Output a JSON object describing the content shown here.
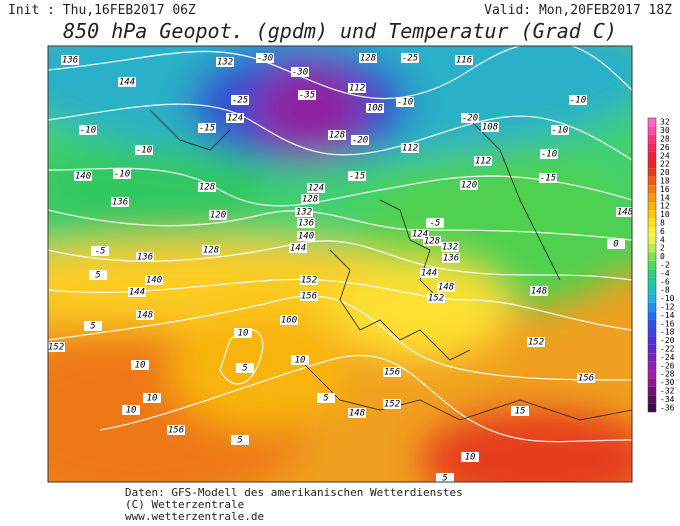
{
  "header": {
    "init": "Init : Thu,16FEB2017 06Z",
    "valid": "Valid: Mon,20FEB2017 18Z",
    "title": "850 hPa Geopot. (gpdm) und Temperatur (Grad C)"
  },
  "legend": {
    "ticks": [
      32,
      30,
      28,
      26,
      24,
      22,
      20,
      18,
      16,
      14,
      12,
      10,
      8,
      6,
      4,
      2,
      0,
      -2,
      -4,
      -6,
      -8,
      -10,
      -12,
      -14,
      -16,
      -18,
      -20,
      -22,
      -24,
      -26,
      -28,
      -30,
      -32,
      -34,
      -36
    ],
    "colors": [
      "#ff66cc",
      "#ff4da6",
      "#ff3380",
      "#f5285a",
      "#eb2040",
      "#e02828",
      "#e63c1e",
      "#ec5a14",
      "#f27a10",
      "#f59a0c",
      "#f8b40a",
      "#fbcc0c",
      "#fde020",
      "#fff040",
      "#e8f550",
      "#b8ee50",
      "#80e050",
      "#50d860",
      "#30d080",
      "#20c8a0",
      "#20c0c0",
      "#20b0e0",
      "#2090f0",
      "#2070f0",
      "#3050e8",
      "#4040e0",
      "#5030d8",
      "#6428c8",
      "#7820c0",
      "#8c20b0",
      "#a020a8",
      "#8c1890",
      "#701078",
      "#580c60",
      "#400848"
    ]
  },
  "map_labels": [
    136,
    144,
    132,
    -30,
    -25,
    -30,
    -35,
    124,
    -15,
    128,
    -20,
    128,
    -25,
    108,
    112,
    -10,
    116,
    112,
    -20,
    108,
    -10,
    -10,
    -10,
    -15,
    112,
    120,
    -10,
    140,
    136,
    -10,
    -10,
    128,
    120,
    124,
    128,
    -15,
    132,
    136,
    140,
    144,
    -5,
    124,
    128,
    132,
    136,
    144,
    148,
    152,
    148,
    0,
    148,
    152,
    156,
    140,
    144,
    148,
    5,
    152,
    156,
    160,
    10,
    10,
    5,
    5,
    152,
    10,
    10,
    10,
    156,
    156,
    152,
    148,
    5,
    15,
    10,
    5,
    5,
    -5,
    136,
    128
  ],
  "footer": {
    "line1": "Daten: GFS-Modell des amerikanischen Wetterdienstes",
    "line2": "(C) Wetterzentrale",
    "line3": "www.wetterzentrale.de"
  }
}
